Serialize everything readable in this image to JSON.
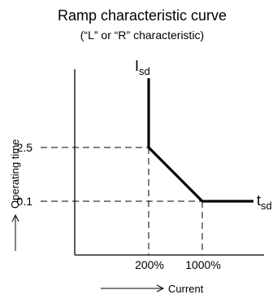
{
  "diagram": {
    "title": "Ramp characteristic curve",
    "subtitle": "(“L” or “R” characteristic)",
    "y_axis_label": "Operating time",
    "x_axis_label": "Current",
    "y_ticks": [
      "2.5",
      "0.1"
    ],
    "x_ticks": [
      "200%",
      "1000%"
    ],
    "isd_label": {
      "main": "I",
      "sub": "sd"
    },
    "tsd_label": {
      "main": "t",
      "sub": "sd"
    }
  }
}
